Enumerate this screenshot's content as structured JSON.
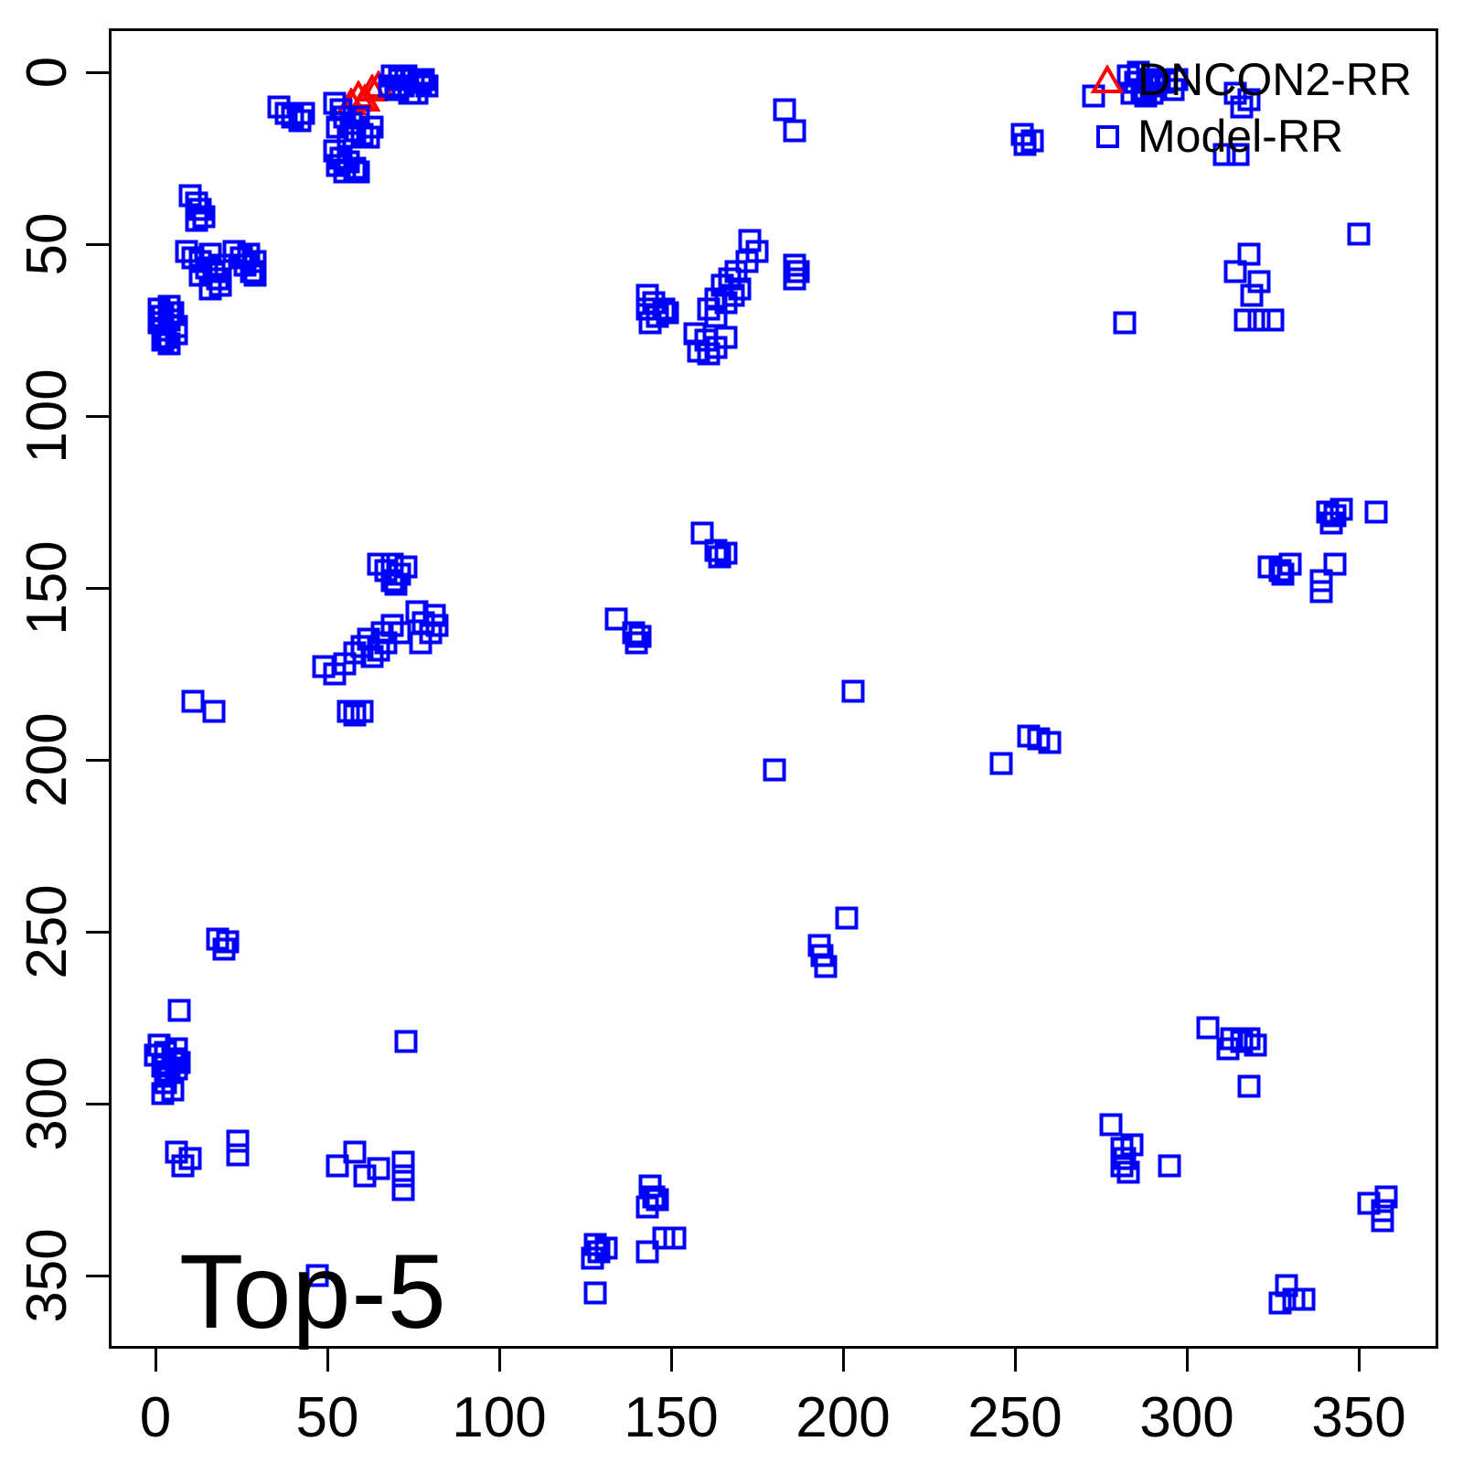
{
  "chart_data": {
    "type": "scatter",
    "title": "",
    "annotation": "Top-5",
    "xlabel": "",
    "ylabel": "",
    "x_ticks": [
      0,
      50,
      100,
      150,
      200,
      250,
      300,
      350
    ],
    "y_ticks": [
      0,
      50,
      100,
      150,
      200,
      250,
      300,
      350
    ],
    "x_range": [
      -13,
      373
    ],
    "y_range": [
      -13,
      371
    ],
    "y_axis_inverted": true,
    "grid": "off",
    "background_color": "#FFFFFF",
    "axis_color": "#000000",
    "legend": {
      "position": "top-right",
      "entries": [
        {
          "label": "DNCON2-RR",
          "marker": "triangle",
          "color": "#FF0000"
        },
        {
          "label": "Model-RR",
          "marker": "square",
          "color": "#0000FF"
        }
      ]
    },
    "series": [
      {
        "name": "DNCON2-RR",
        "marker": "triangle",
        "color": "#FF0000",
        "points": [
          [
            57,
            9
          ],
          [
            59,
            7
          ],
          [
            61,
            8
          ],
          [
            63,
            5
          ],
          [
            65,
            4
          ]
        ]
      },
      {
        "name": "Model-RR",
        "marker": "square",
        "color": "#0000FF",
        "points": [
          [
            36,
            10
          ],
          [
            38,
            12
          ],
          [
            40,
            13
          ],
          [
            42,
            14
          ],
          [
            43,
            12
          ],
          [
            10,
            36
          ],
          [
            12,
            38
          ],
          [
            13,
            40
          ],
          [
            14,
            42
          ],
          [
            12,
            43
          ],
          [
            69,
            1
          ],
          [
            71,
            2
          ],
          [
            73,
            1
          ],
          [
            75,
            2
          ],
          [
            77,
            3
          ],
          [
            79,
            4
          ],
          [
            68,
            4
          ],
          [
            70,
            5
          ],
          [
            72,
            4
          ],
          [
            74,
            6
          ],
          [
            76,
            6
          ],
          [
            78,
            2
          ],
          [
            1,
            69
          ],
          [
            2,
            71
          ],
          [
            1,
            73
          ],
          [
            2,
            75
          ],
          [
            3,
            77
          ],
          [
            4,
            79
          ],
          [
            4,
            68
          ],
          [
            5,
            70
          ],
          [
            4,
            72
          ],
          [
            6,
            74
          ],
          [
            6,
            76
          ],
          [
            2,
            78
          ],
          [
            52,
            9
          ],
          [
            54,
            11
          ],
          [
            55,
            13
          ],
          [
            57,
            15
          ],
          [
            58,
            17
          ],
          [
            60,
            18
          ],
          [
            62,
            19
          ],
          [
            53,
            16
          ],
          [
            56,
            19
          ],
          [
            59,
            13
          ],
          [
            63,
            16
          ],
          [
            9,
            52
          ],
          [
            11,
            54
          ],
          [
            13,
            55
          ],
          [
            15,
            57
          ],
          [
            17,
            58
          ],
          [
            18,
            60
          ],
          [
            19,
            62
          ],
          [
            16,
            53
          ],
          [
            19,
            56
          ],
          [
            13,
            59
          ],
          [
            16,
            63
          ],
          [
            52,
            23
          ],
          [
            54,
            25
          ],
          [
            56,
            26
          ],
          [
            58,
            28
          ],
          [
            59,
            29
          ],
          [
            53,
            27
          ],
          [
            55,
            29
          ],
          [
            23,
            52
          ],
          [
            25,
            54
          ],
          [
            26,
            56
          ],
          [
            28,
            58
          ],
          [
            29,
            59
          ],
          [
            27,
            53
          ],
          [
            29,
            55
          ],
          [
            183,
            11
          ],
          [
            186,
            17
          ],
          [
            11,
            183
          ],
          [
            17,
            186
          ],
          [
            143,
            65
          ],
          [
            145,
            67
          ],
          [
            143,
            69
          ],
          [
            146,
            71
          ],
          [
            148,
            69
          ],
          [
            144,
            73
          ],
          [
            149,
            70
          ],
          [
            65,
            143
          ],
          [
            67,
            145
          ],
          [
            69,
            143
          ],
          [
            71,
            146
          ],
          [
            69,
            148
          ],
          [
            73,
            144
          ],
          [
            70,
            149
          ],
          [
            173,
            49
          ],
          [
            175,
            52
          ],
          [
            172,
            55
          ],
          [
            169,
            58
          ],
          [
            167,
            60
          ],
          [
            170,
            63
          ],
          [
            168,
            65
          ],
          [
            165,
            62
          ],
          [
            166,
            67
          ],
          [
            163,
            66
          ],
          [
            161,
            69
          ],
          [
            163,
            71
          ],
          [
            157,
            76
          ],
          [
            160,
            78
          ],
          [
            163,
            80
          ],
          [
            166,
            77
          ],
          [
            158,
            81
          ],
          [
            161,
            82
          ],
          [
            186,
            56
          ],
          [
            186,
            60
          ],
          [
            187,
            58
          ],
          [
            49,
            173
          ],
          [
            52,
            175
          ],
          [
            55,
            172
          ],
          [
            58,
            169
          ],
          [
            60,
            167
          ],
          [
            63,
            170
          ],
          [
            65,
            168
          ],
          [
            62,
            165
          ],
          [
            67,
            166
          ],
          [
            66,
            163
          ],
          [
            69,
            161
          ],
          [
            71,
            163
          ],
          [
            76,
            157
          ],
          [
            78,
            160
          ],
          [
            80,
            163
          ],
          [
            77,
            166
          ],
          [
            81,
            158
          ],
          [
            82,
            161
          ],
          [
            56,
            186
          ],
          [
            60,
            186
          ],
          [
            58,
            187
          ],
          [
            159,
            134
          ],
          [
            163,
            139
          ],
          [
            166,
            140
          ],
          [
            164,
            141
          ],
          [
            134,
            159
          ],
          [
            139,
            163
          ],
          [
            140,
            166
          ],
          [
            141,
            164
          ],
          [
            203,
            180
          ],
          [
            180,
            203
          ],
          [
            282,
            73
          ],
          [
            73,
            282
          ],
          [
            350,
            47
          ],
          [
            47,
            350
          ],
          [
            318,
            295
          ],
          [
            295,
            318
          ],
          [
            252,
            18
          ],
          [
            255,
            20
          ],
          [
            253,
            21
          ],
          [
            18,
            252
          ],
          [
            20,
            255
          ],
          [
            21,
            253
          ],
          [
            283,
            1
          ],
          [
            285,
            3
          ],
          [
            287,
            5
          ],
          [
            289,
            2
          ],
          [
            291,
            4
          ],
          [
            284,
            6
          ],
          [
            288,
            7
          ],
          [
            286,
            0
          ],
          [
            290,
            6
          ],
          [
            292,
            3
          ],
          [
            273,
            7
          ],
          [
            294,
            3
          ],
          [
            296,
            5
          ],
          [
            297,
            2
          ],
          [
            1,
            283
          ],
          [
            3,
            285
          ],
          [
            5,
            287
          ],
          [
            2,
            289
          ],
          [
            4,
            291
          ],
          [
            6,
            284
          ],
          [
            7,
            288
          ],
          [
            0,
            286
          ],
          [
            6,
            290
          ],
          [
            3,
            292
          ],
          [
            7,
            273
          ],
          [
            3,
            294
          ],
          [
            5,
            296
          ],
          [
            2,
            297
          ],
          [
            314,
            6
          ],
          [
            318,
            8
          ],
          [
            316,
            10
          ],
          [
            6,
            314
          ],
          [
            8,
            318
          ],
          [
            10,
            316
          ],
          [
            311,
            24
          ],
          [
            315,
            24
          ],
          [
            24,
            311
          ],
          [
            24,
            315
          ],
          [
            318,
            53
          ],
          [
            314,
            58
          ],
          [
            321,
            61
          ],
          [
            319,
            65
          ],
          [
            317,
            72
          ],
          [
            321,
            72
          ],
          [
            325,
            72
          ],
          [
            53,
            318
          ],
          [
            58,
            314
          ],
          [
            61,
            321
          ],
          [
            65,
            319
          ],
          [
            72,
            317
          ],
          [
            72,
            321
          ],
          [
            72,
            325
          ],
          [
            254,
            193
          ],
          [
            257,
            194
          ],
          [
            260,
            195
          ],
          [
            246,
            201
          ],
          [
            193,
            254
          ],
          [
            194,
            257
          ],
          [
            195,
            260
          ],
          [
            201,
            246
          ],
          [
            306,
            278
          ],
          [
            313,
            281
          ],
          [
            316,
            282
          ],
          [
            318,
            281
          ],
          [
            312,
            284
          ],
          [
            320,
            283
          ],
          [
            278,
            306
          ],
          [
            281,
            313
          ],
          [
            282,
            316
          ],
          [
            281,
            318
          ],
          [
            284,
            312
          ],
          [
            283,
            320
          ],
          [
            341,
            128
          ],
          [
            343,
            129
          ],
          [
            342,
            131
          ],
          [
            345,
            127
          ],
          [
            355,
            128
          ],
          [
            128,
            341
          ],
          [
            129,
            343
          ],
          [
            131,
            342
          ],
          [
            127,
            345
          ],
          [
            128,
            355
          ],
          [
            324,
            144
          ],
          [
            327,
            145
          ],
          [
            330,
            143
          ],
          [
            328,
            146
          ],
          [
            144,
            324
          ],
          [
            145,
            327
          ],
          [
            143,
            330
          ],
          [
            146,
            328
          ],
          [
            343,
            143
          ],
          [
            339,
            148
          ],
          [
            339,
            151
          ],
          [
            143,
            343
          ],
          [
            148,
            339
          ],
          [
            151,
            339
          ],
          [
            353,
            329
          ],
          [
            358,
            327
          ],
          [
            357,
            331
          ],
          [
            357,
            334
          ],
          [
            329,
            353
          ],
          [
            327,
            358
          ],
          [
            331,
            357
          ],
          [
            334,
            357
          ]
        ]
      }
    ]
  }
}
